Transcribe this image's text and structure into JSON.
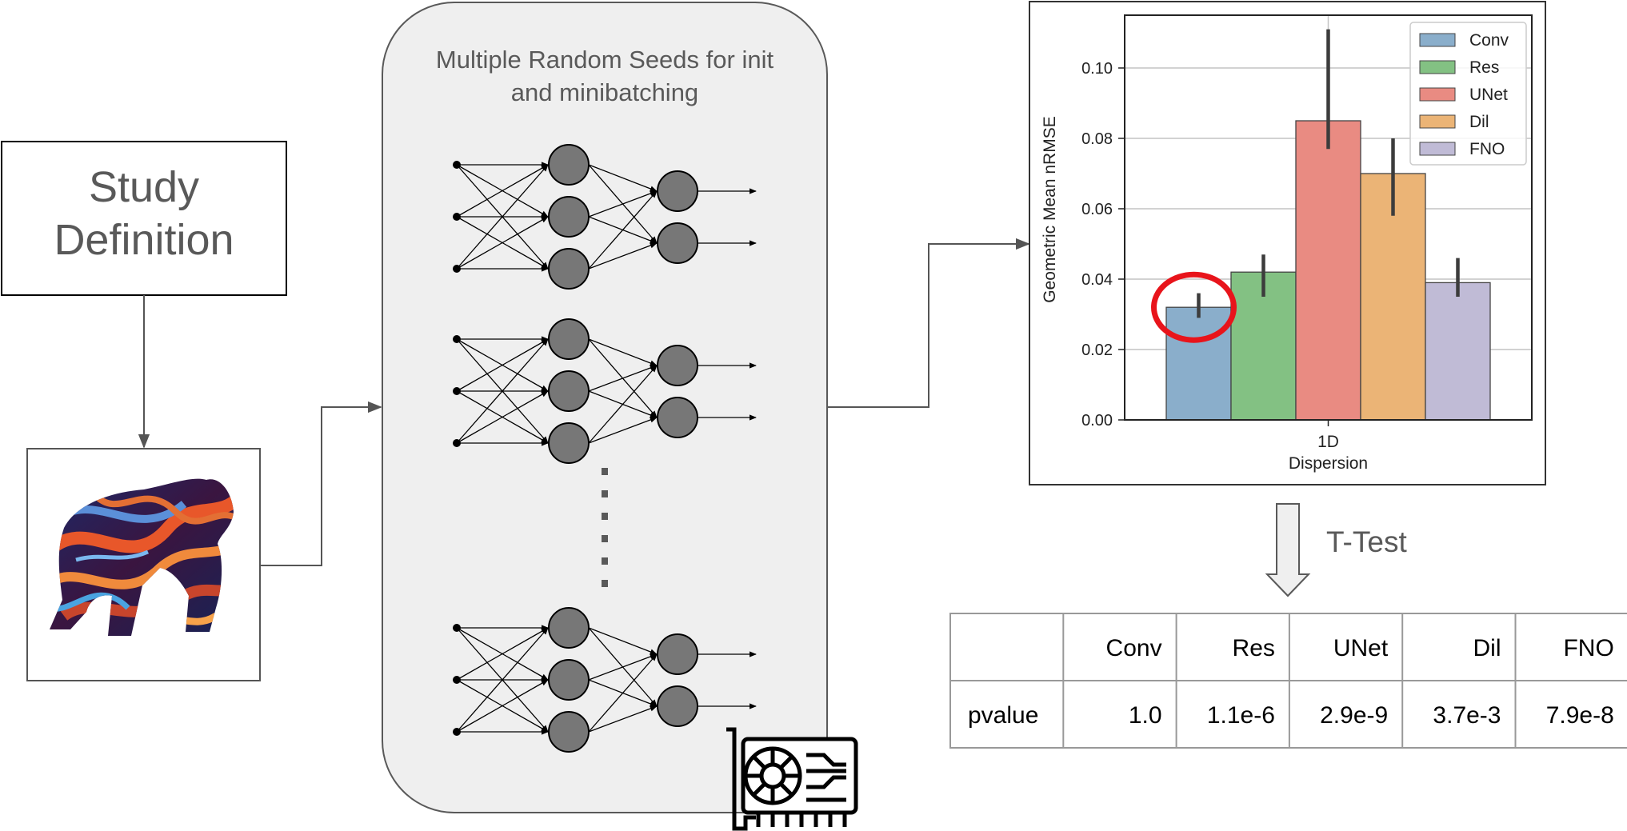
{
  "study_box": {
    "line1": "Study",
    "line2": "Definition"
  },
  "seeds_panel": {
    "line1": "Multiple Random Seeds for init",
    "line2": "and minibatching"
  },
  "ttest": {
    "label": "T-Test"
  },
  "icons": {
    "gorilla": "gorilla-icon",
    "gpu": "gpu-card-icon"
  },
  "chart_data": {
    "type": "bar",
    "categories": [
      "1D"
    ],
    "xlabel": "Dispersion",
    "ylabel": "Geometric Mean nRMSE",
    "ylim": [
      0,
      0.115
    ],
    "yticks": [
      0.0,
      0.02,
      0.04,
      0.06,
      0.08,
      0.1
    ],
    "yticklabels": [
      "0.00",
      "0.02",
      "0.04",
      "0.06",
      "0.08",
      "0.10"
    ],
    "grid": true,
    "legend_position": "top-right",
    "series": [
      {
        "name": "Conv",
        "value": 0.032,
        "err_low": 0.029,
        "err_high": 0.036,
        "color": "#8aaecb"
      },
      {
        "name": "Res",
        "value": 0.042,
        "err_low": 0.035,
        "err_high": 0.047,
        "color": "#83c183"
      },
      {
        "name": "UNet",
        "value": 0.085,
        "err_low": 0.077,
        "err_high": 0.111,
        "color": "#e98b82"
      },
      {
        "name": "Dil",
        "value": 0.07,
        "err_low": 0.058,
        "err_high": 0.08,
        "color": "#ebb476"
      },
      {
        "name": "FNO",
        "value": 0.039,
        "err_low": 0.035,
        "err_high": 0.046,
        "color": "#c0bbd6"
      }
    ],
    "highlight": {
      "series": "Conv",
      "color": "#e8141b"
    }
  },
  "pvalue_table": {
    "headers": [
      "",
      "Conv",
      "Res",
      "UNet",
      "Dil",
      "FNO"
    ],
    "rows": [
      [
        "pvalue",
        "1.0",
        "1.1e-6",
        "2.9e-9",
        "3.7e-3",
        "7.9e-8"
      ]
    ]
  }
}
